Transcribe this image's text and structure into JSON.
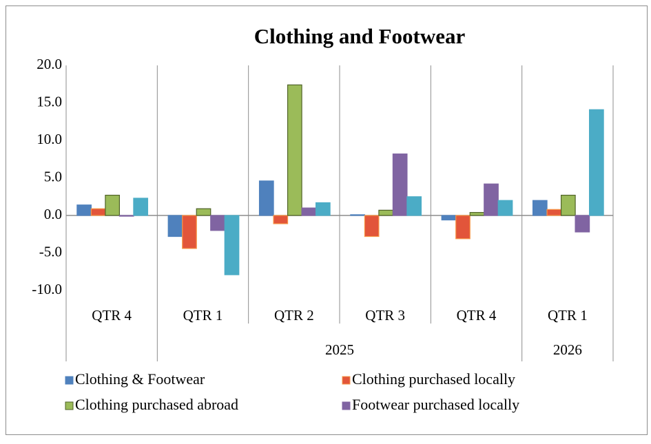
{
  "chart_data": {
    "type": "bar",
    "title": "Clothing and Footwear",
    "categories": [
      "QTR 4",
      "QTR 1",
      "QTR 2",
      "QTR 3",
      "QTR 4",
      "QTR 1"
    ],
    "groups": [
      {
        "label": null,
        "size": 1
      },
      {
        "label": "2025",
        "size": 4
      },
      {
        "label": "2026",
        "size": 1
      }
    ],
    "series": [
      {
        "name": "Clothing & Footwear",
        "color": "#4f81bd",
        "values": [
          1.4,
          -2.8,
          4.6,
          0.1,
          -0.6,
          2.0
        ]
      },
      {
        "name": "Clothing purchased locally",
        "color": "#e2553a",
        "values": [
          0.9,
          -4.4,
          -1.1,
          -2.8,
          -3.1,
          0.8
        ]
      },
      {
        "name": "Clothing purchased abroad",
        "color": "#9bbb59",
        "values": [
          2.7,
          0.9,
          17.4,
          0.7,
          0.4,
          2.7
        ]
      },
      {
        "name": "Footwear purchased locally",
        "color": "#8064a2",
        "values": [
          -0.1,
          -2.0,
          1.0,
          8.2,
          4.2,
          -2.2
        ]
      },
      {
        "name": null,
        "color": "#4bacc6",
        "values": [
          2.3,
          -7.9,
          1.7,
          2.5,
          2.0,
          14.1
        ]
      }
    ],
    "ylim": [
      -10,
      20
    ],
    "yticks": [
      {
        "value": -10,
        "label": "-10.0"
      },
      {
        "value": -5,
        "label": "-5.0"
      },
      {
        "value": 0,
        "label": "0.0"
      },
      {
        "value": 5,
        "label": "5.0"
      },
      {
        "value": 10,
        "label": "10.0"
      },
      {
        "value": 15,
        "label": "15.0"
      },
      {
        "value": 20,
        "label": "20.0"
      }
    ],
    "grid": false,
    "legend": "bottom"
  }
}
